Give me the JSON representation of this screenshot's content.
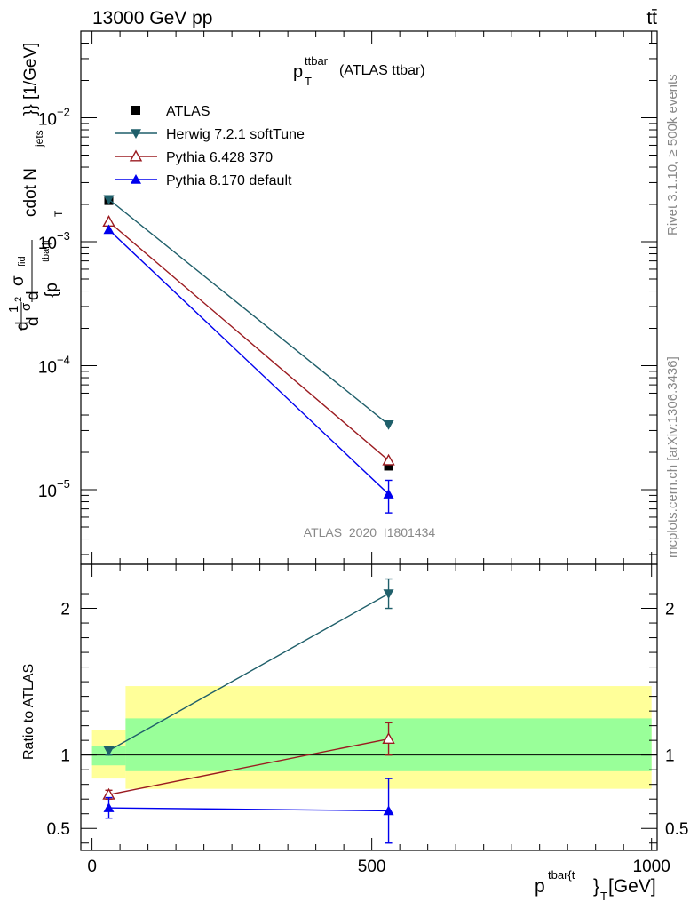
{
  "header": {
    "energy_label": "13000 GeV pp",
    "process_label": "tt̄"
  },
  "side_labels": {
    "rivet": "Rivet 3.1.10, ≥ 500k events",
    "mcplots": "mcplots.cern.ch [arXiv:1306.3436]"
  },
  "plot_title": {
    "main": "p",
    "sup": "ttbar",
    "sub": "T",
    "suffix": "(ATLAS ttbar)"
  },
  "watermark": "ATLAS_2020_I1801434",
  "y_axis_main_label": "d 1/σ d d²σ^fid / d² {p_T^tbar[t} cdot N_jets}} [1/GeV]",
  "y_axis_label_parts": {
    "n_jets": "cdot N",
    "jets_sub": "jets",
    "close": "}} [1/GeV]",
    "d2sigma": "d",
    "fid": "fid",
    "ptbar": "d",
    "brace_p": "{p",
    "tbar_sup": "tbar[t",
    "t_sub": "T",
    "dfrac": "d",
    "one": "1",
    "sigma": "σ",
    "d_left": "d",
    "two": "2",
    "sigma2": "σ"
  },
  "ratio_y_label": "Ratio to ATLAS",
  "x_axis_label": {
    "main": "p",
    "sup": "tbar{t",
    "close": "}",
    "sub": "T",
    "unit": "[GeV]"
  },
  "legend": [
    {
      "name": "ATLAS",
      "color": "#000000",
      "marker": "square"
    },
    {
      "name": "Herwig 7.2.1 softTune",
      "color": "#1f5f6a",
      "marker": "triangle-down"
    },
    {
      "name": "Pythia 6.428 370",
      "color": "#9b1b20",
      "marker": "triangle-up-open"
    },
    {
      "name": "Pythia 8.170 default",
      "color": "#0000ee",
      "marker": "triangle-up"
    }
  ],
  "chart_data": [
    {
      "type": "line",
      "title": "p_T^ttbar (ATLAS ttbar)",
      "xlabel": "p_T^tbar{t} [GeV]",
      "ylabel": "1/σ d²σ^fid / d²{p_T^tbar[t} cdot N_jets}} [1/GeV]",
      "yscale": "log",
      "xlim": [
        -20,
        1010
      ],
      "ylim": [
        2.5e-06,
        0.05
      ],
      "yticks": [
        {
          "value": 1e-05,
          "base": "10",
          "exp": "−5"
        },
        {
          "value": 0.0001,
          "base": "10",
          "exp": "−4"
        },
        {
          "value": 0.001,
          "base": "10",
          "exp": "−3"
        },
        {
          "value": 0.01,
          "base": "10",
          "exp": "−2"
        }
      ],
      "series": [
        {
          "name": "ATLAS",
          "x": [
            30,
            530
          ],
          "values": [
            0.00215,
            1.55e-05
          ]
        },
        {
          "name": "Herwig 7.2.1 softTune",
          "x": [
            30,
            530
          ],
          "values": [
            0.0022,
            3.35e-05
          ]
        },
        {
          "name": "Pythia 6.428 370",
          "x": [
            30,
            530
          ],
          "values": [
            0.00145,
            1.72e-05
          ]
        },
        {
          "name": "Pythia 8.170 default",
          "x": [
            30,
            530
          ],
          "values": [
            0.00125,
            9.2e-06
          ],
          "errors": [
            0,
            2.7e-06
          ]
        }
      ]
    },
    {
      "type": "line",
      "title": "Ratio to ATLAS",
      "xlabel": "p_T^tbar{t} [GeV]",
      "ylabel": "Ratio to ATLAS",
      "xlim": [
        -20,
        1010
      ],
      "ylim": [
        0.35,
        2.3
      ],
      "xticks": [
        {
          "value": 0,
          "label": "0"
        },
        {
          "value": 500,
          "label": "500"
        },
        {
          "value": 1000,
          "label": "1000"
        }
      ],
      "yticks": [
        {
          "value": 0.5,
          "label": "0.5"
        },
        {
          "value": 1,
          "label": "1"
        },
        {
          "value": 2,
          "label": "2"
        }
      ],
      "bands": [
        {
          "x0": 0,
          "x1": 60,
          "lo": 0.84,
          "hi": 1.17,
          "kind": "total"
        },
        {
          "x0": 60,
          "x1": 1000,
          "lo": 0.77,
          "hi": 1.47,
          "kind": "total"
        },
        {
          "x0": 0,
          "x1": 60,
          "lo": 0.93,
          "hi": 1.06,
          "kind": "stat"
        },
        {
          "x0": 60,
          "x1": 1000,
          "lo": 0.89,
          "hi": 1.25,
          "kind": "stat"
        }
      ],
      "series": [
        {
          "name": "Herwig 7.2.1 softTune",
          "x": [
            30,
            530
          ],
          "values": [
            1.03,
            2.1
          ],
          "errors": [
            0.03,
            0.1
          ]
        },
        {
          "name": "Pythia 6.428 370",
          "x": [
            30,
            530
          ],
          "values": [
            0.73,
            1.11
          ],
          "errors": [
            0.03,
            0.11
          ]
        },
        {
          "name": "Pythia 8.170 default",
          "x": [
            30,
            530
          ],
          "values": [
            0.64,
            0.62
          ],
          "errors": [
            0.07,
            0.22
          ]
        }
      ]
    }
  ]
}
